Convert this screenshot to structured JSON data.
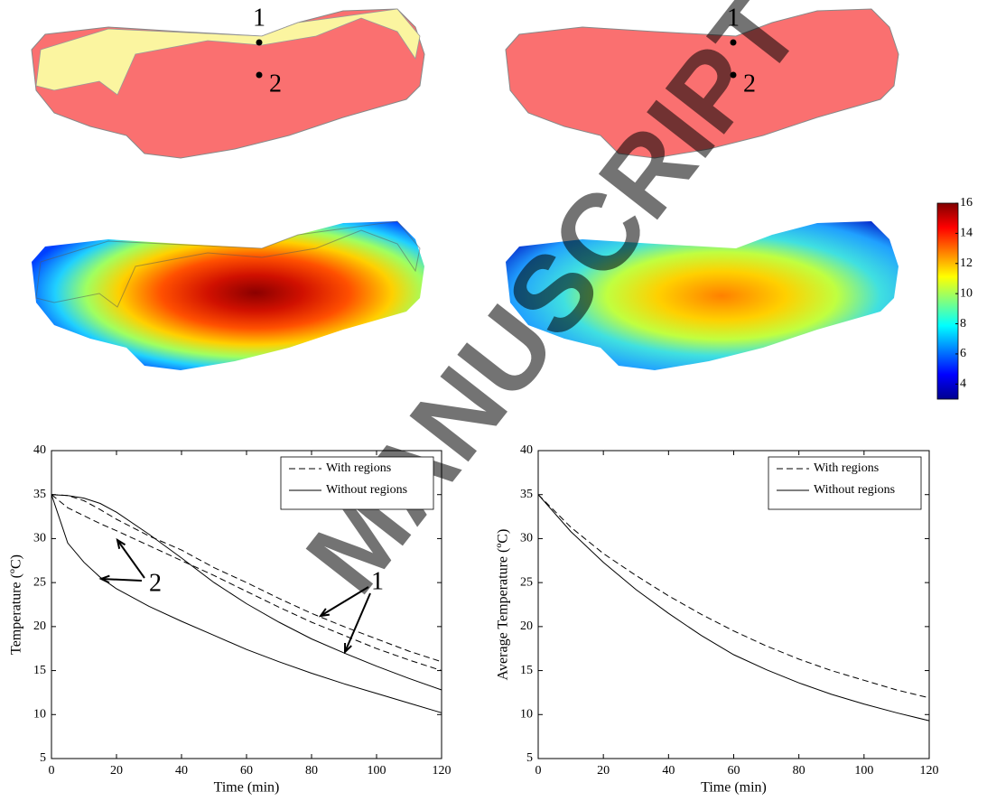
{
  "maps": [
    {
      "points": [
        "1",
        "2"
      ]
    },
    {
      "points": [
        "1",
        "2"
      ]
    }
  ],
  "colorbar": {
    "clim": [
      3,
      16
    ],
    "ticks": [
      4,
      6,
      8,
      10,
      12,
      14,
      16
    ]
  },
  "watermark": "MANUSCRIPT",
  "chart_data": [
    {
      "type": "line",
      "xlabel": "Time (min)",
      "ylabel": "Temperature (ºC)",
      "x": [
        0,
        5,
        10,
        15,
        20,
        30,
        40,
        50,
        60,
        70,
        80,
        90,
        100,
        110,
        120
      ],
      "xlim": [
        0,
        120
      ],
      "ylim": [
        5,
        40
      ],
      "xticks": [
        0,
        20,
        40,
        60,
        80,
        100,
        120
      ],
      "yticks": [
        5,
        10,
        15,
        20,
        25,
        30,
        35,
        40
      ],
      "legend": "upper right",
      "annotations": [
        "1",
        "2"
      ],
      "series": [
        {
          "name": "With regions",
          "color": "#000000",
          "dash": true,
          "values": [
            35,
            34.9,
            34.3,
            33.3,
            32.2,
            30.3,
            28.7,
            26.7,
            25.0,
            23.2,
            21.5,
            20.0,
            18.6,
            17.2,
            16.0
          ]
        },
        {
          "name": "With regions",
          "color": "#000000",
          "dash": true,
          "values": [
            35,
            33.5,
            32.6,
            31.7,
            30.9,
            29.2,
            27.5,
            25.8,
            24.0,
            22.2,
            20.5,
            19.0,
            17.5,
            16.2,
            15.0
          ]
        },
        {
          "name": "Without regions",
          "color": "#000000",
          "dash": false,
          "values": [
            35,
            34.9,
            34.6,
            34.0,
            33.0,
            30.5,
            27.8,
            25.0,
            22.6,
            20.5,
            18.6,
            17.0,
            15.5,
            14.1,
            12.8
          ]
        },
        {
          "name": "Without regions",
          "color": "#000000",
          "dash": false,
          "values": [
            35,
            29.5,
            27.3,
            25.6,
            24.3,
            22.3,
            20.6,
            19.0,
            17.4,
            16.0,
            14.7,
            13.5,
            12.4,
            11.3,
            10.2
          ]
        }
      ]
    },
    {
      "type": "line",
      "xlabel": "Time (min)",
      "ylabel": "Average Temperature (ºC)",
      "x": [
        0,
        10,
        20,
        30,
        40,
        50,
        60,
        70,
        80,
        90,
        100,
        110,
        120
      ],
      "xlim": [
        0,
        120
      ],
      "ylim": [
        5,
        40
      ],
      "xticks": [
        0,
        20,
        40,
        60,
        80,
        100,
        120
      ],
      "yticks": [
        5,
        10,
        15,
        20,
        25,
        30,
        35,
        40
      ],
      "legend": "upper right",
      "series": [
        {
          "name": "With regions",
          "color": "#000000",
          "dash": true,
          "values": [
            35,
            31.3,
            28.3,
            25.8,
            23.5,
            21.4,
            19.5,
            17.8,
            16.3,
            15.0,
            13.9,
            12.8,
            11.9
          ]
        },
        {
          "name": "Without regions",
          "color": "#000000",
          "dash": false,
          "values": [
            35,
            30.8,
            27.3,
            24.2,
            21.5,
            19.0,
            16.8,
            15.1,
            13.6,
            12.3,
            11.2,
            10.2,
            9.3
          ]
        }
      ]
    }
  ]
}
